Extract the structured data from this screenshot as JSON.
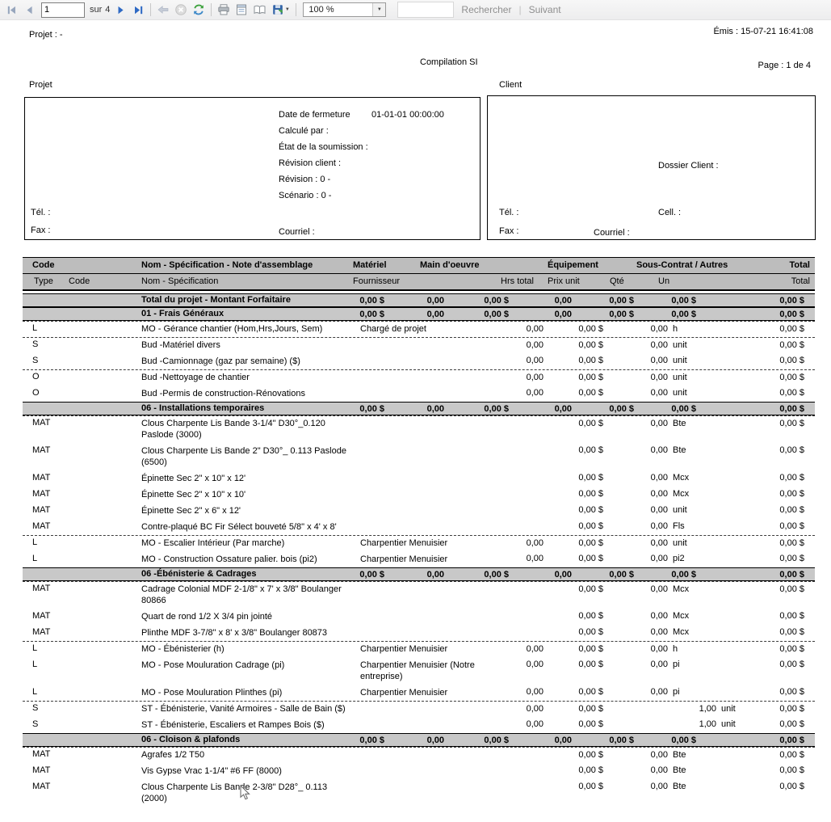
{
  "colors": {
    "nav_enabled_blue": "#2e69c4",
    "nav_disabled_gray": "#97a6bd",
    "refresh_green": "#3ba13b",
    "header_gray": "#bdbdbd",
    "section_gray": "#c8c8c8",
    "toolbar_bg": "#f1f1f2",
    "link_gray": "#8f8f8f"
  },
  "toolbar": {
    "page_value": "1",
    "pages_label": "sur",
    "pages_total": "4",
    "zoom_value": "100 %",
    "caret_glyph": "▼",
    "search_value": "",
    "find_label": "Rechercher",
    "links_separator": "|",
    "next_label": "Suivant"
  },
  "report": {
    "project_label": "Projet :  -",
    "emitted": "Émis : 15-07-21 16:41:08",
    "title": "Compilation SI",
    "page_info": "Page : 1 de 4",
    "projet_box": {
      "label": "Projet",
      "date_fermeture_label": "Date de fermeture",
      "date_fermeture_value": "01-01-01 00:00:00",
      "calcule_par": "Calculé par :",
      "etat_soumission": "État de la soumission :",
      "revision_client": "Révision client :",
      "revision": "Révision : 0 -",
      "scenario": "Scénario : 0 -",
      "tel": "Tél. :",
      "fax": "Fax :",
      "courriel": "Courriel :"
    },
    "client_box": {
      "label": "Client",
      "dossier_client": "Dossier Client :",
      "tel": "Tél. :",
      "cell": "Cell. :",
      "fax": "Fax :",
      "courriel": "Courriel :"
    }
  },
  "table": {
    "header1": {
      "code": "Code",
      "nom": "Nom - Spécification - Note d'assemblage",
      "materiel": "Matériel",
      "main_oeuvre": "Main d'oeuvre",
      "equipement": "Équipement",
      "sous_contrat": "Sous-Contrat / Autres",
      "total": "Total"
    },
    "header2": {
      "type": "Type",
      "code": "Code",
      "nom": "Nom - Spécification",
      "fournisseur": "Fournisseur",
      "hrs_total": "Hrs total",
      "prix_unit": "Prix unit",
      "qte": "Qté",
      "un": "Un",
      "total": "Total"
    },
    "rows": [
      {
        "kind": "total",
        "label": "Total du projet - Montant Forfaitaire",
        "values": [
          "0,00 $",
          "0,00",
          "0,00 $",
          "0,00",
          "0,00 $",
          "0,00 $",
          "0,00 $"
        ]
      },
      {
        "kind": "section",
        "label": "01 - Frais Généraux",
        "values": [
          "0,00 $",
          "0,00",
          "0,00 $",
          "0,00",
          "0,00 $",
          "0,00 $",
          "0,00 $"
        ]
      },
      {
        "kind": "detail",
        "dash": true,
        "type": "L",
        "name": "MO - Gérance chantier (Hom,Hrs,Jours, Sem)",
        "fournisseur": "Chargé de projet",
        "hrs": "0,00",
        "prix": "0,00 $",
        "qte": "0,00",
        "un": "h",
        "total": "0,00 $"
      },
      {
        "kind": "detail",
        "dash": true,
        "type": "S",
        "name": "Bud -Matériel divers",
        "fournisseur": "",
        "hrs": "0,00",
        "prix": "0,00 $",
        "qte": "0,00",
        "un": "unit",
        "total": "0,00 $"
      },
      {
        "kind": "detail",
        "type": "S",
        "name": "Bud -Camionnage (gaz par semaine) ($)",
        "fournisseur": "",
        "hrs": "0,00",
        "prix": "0,00 $",
        "qte": "0,00",
        "un": "unit",
        "total": "0,00 $"
      },
      {
        "kind": "detail",
        "dash": true,
        "type": "O",
        "name": "Bud -Nettoyage de chantier",
        "fournisseur": "",
        "hrs": "0,00",
        "prix": "0,00 $",
        "qte": "0,00",
        "un": "unit",
        "total": "0,00 $"
      },
      {
        "kind": "detail",
        "type": "O",
        "name": "Bud -Permis de construction-Rénovations",
        "fournisseur": "",
        "hrs": "0,00",
        "prix": "0,00 $",
        "qte": "0,00",
        "un": "unit",
        "total": "0,00 $"
      },
      {
        "kind": "section",
        "label": "06 - Installations temporaires",
        "values": [
          "0,00 $",
          "0,00",
          "0,00 $",
          "0,00",
          "0,00 $",
          "0,00 $",
          "0,00 $"
        ]
      },
      {
        "kind": "detail",
        "dash": true,
        "type": "MAT",
        "name": "Clous Charpente Lis Bande 3-1/4\" D30°_0.120 Paslode (3000)",
        "fournisseur": "",
        "prix": "0,00 $",
        "qte": "0,00",
        "un": "Bte",
        "total": "0,00 $"
      },
      {
        "kind": "detail",
        "type": "MAT",
        "name": "Clous Charpente Lis Bande 2\" D30°_ 0.113 Paslode (6500)",
        "fournisseur": "",
        "prix": "0,00 $",
        "qte": "0,00",
        "un": "Bte",
        "total": "0,00 $"
      },
      {
        "kind": "detail",
        "type": "MAT",
        "name": "Épinette Sec 2\" x 10\" x 12'",
        "fournisseur": "",
        "prix": "0,00 $",
        "qte": "0,00",
        "un": "Mcx",
        "total": "0,00 $"
      },
      {
        "kind": "detail",
        "type": "MAT",
        "name": "Épinette Sec 2\" x 10\" x 10'",
        "fournisseur": "",
        "prix": "0,00 $",
        "qte": "0,00",
        "un": "Mcx",
        "total": "0,00 $"
      },
      {
        "kind": "detail",
        "type": "MAT",
        "name": "Épinette Sec 2\" x  6\" x 12'",
        "fournisseur": "",
        "prix": "0,00 $",
        "qte": "0,00",
        "un": "unit",
        "total": "0,00 $"
      },
      {
        "kind": "detail",
        "type": "MAT",
        "name": "Contre-plaqué BC Fir Sélect bouveté 5/8\" x 4' x 8'",
        "fournisseur": "",
        "prix": "0,00 $",
        "qte": "0,00",
        "un": "Fls",
        "total": "0,00 $"
      },
      {
        "kind": "detail",
        "dash": true,
        "type": "L",
        "name": "MO - Escalier Intérieur (Par marche)",
        "fournisseur": "Charpentier Menuisier",
        "hrs": "0,00",
        "prix": "0,00 $",
        "qte": "0,00",
        "un": "unit",
        "total": "0,00 $"
      },
      {
        "kind": "detail",
        "type": "L",
        "name": "MO - Construction Ossature palier. bois  (pi2)",
        "fournisseur": "Charpentier Menuisier",
        "hrs": "0,00",
        "prix": "0,00 $",
        "qte": "0,00",
        "un": "pi2",
        "total": "0,00 $"
      },
      {
        "kind": "section",
        "label": "06  -Ébénisterie & Cadrages",
        "values": [
          "0,00 $",
          "0,00",
          "0,00 $",
          "0,00",
          "0,00 $",
          "0,00 $",
          "0,00 $"
        ]
      },
      {
        "kind": "detail",
        "dash": true,
        "type": "MAT",
        "name": "Cadrage Colonial MDF 2-1/8\"  x  7' x  3/8\" Boulanger 80866",
        "fournisseur": "",
        "prix": "0,00 $",
        "qte": "0,00",
        "un": "Mcx",
        "total": "0,00 $"
      },
      {
        "kind": "detail",
        "type": "MAT",
        "name": "Quart de rond 1/2 X 3/4 pin jointé",
        "fournisseur": "",
        "prix": "0,00 $",
        "qte": "0,00",
        "un": "Mcx",
        "total": "0,00 $"
      },
      {
        "kind": "detail",
        "type": "MAT",
        "name": "Plinthe MDF  3-7/8\" x  8' x 3/8\" Boulanger 80873",
        "fournisseur": "",
        "prix": "0,00 $",
        "qte": "0,00",
        "un": "Mcx",
        "total": "0,00 $"
      },
      {
        "kind": "detail",
        "dash": true,
        "type": "L",
        "name": "MO - Ébénisterier (h)",
        "fournisseur": "Charpentier Menuisier",
        "hrs": "0,00",
        "prix": "0,00 $",
        "qte": "0,00",
        "un": "h",
        "total": "0,00 $"
      },
      {
        "kind": "detail",
        "type": "L",
        "name": "MO - Pose Mouluration Cadrage (pi)",
        "fournisseur": "Charpentier Menuisier  (Notre entreprise)",
        "hrs": "0,00",
        "prix": "0,00 $",
        "qte": "0,00",
        "un": "pi",
        "total": "0,00 $"
      },
      {
        "kind": "detail",
        "type": "L",
        "name": "MO - Pose Mouluration Plinthes (pi)",
        "fournisseur": "Charpentier Menuisier",
        "hrs": "0,00",
        "prix": "0,00 $",
        "qte": "0,00",
        "un": "pi",
        "total": "0,00 $"
      },
      {
        "kind": "detail",
        "dash": true,
        "shift": true,
        "type": "S",
        "name": "ST - Ébénisterie, Vanité Armoires - Salle de Bain ($)",
        "fournisseur": "",
        "hrs": "0,00",
        "prix": "0,00 $",
        "qte": "1,00",
        "un": "unit",
        "total": "0,00 $"
      },
      {
        "kind": "detail",
        "shift": true,
        "type": "S",
        "name": "ST - Ébénisterie, Escaliers et Rampes Bois ($)",
        "fournisseur": "",
        "hrs": "0,00",
        "prix": "0,00 $",
        "qte": "1,00",
        "un": "unit",
        "total": "0,00 $"
      },
      {
        "kind": "section",
        "label": "06 - Cloison & plafonds",
        "values": [
          "0,00 $",
          "0,00",
          "0,00 $",
          "0,00",
          "0,00 $",
          "0,00 $",
          "0,00 $"
        ]
      },
      {
        "kind": "detail",
        "dash": true,
        "type": "MAT",
        "name": "Agrafes 1/2 T50",
        "fournisseur": "",
        "prix": "0,00 $",
        "qte": "0,00",
        "un": "Bte",
        "total": "0,00 $"
      },
      {
        "kind": "detail",
        "type": "MAT",
        "name": "Vis Gypse Vrac 1-1/4\" #6 FF (8000)",
        "fournisseur": "",
        "prix": "0,00 $",
        "qte": "0,00",
        "un": "Bte",
        "total": "0,00 $"
      },
      {
        "kind": "detail",
        "type": "MAT",
        "name": "Clous Charpente Lis Bande 2-3/8\" D28°_ 0.113 (2000)",
        "fournisseur": "",
        "prix": "0,00 $",
        "qte": "0,00",
        "un": "Bte",
        "total": "0,00 $"
      }
    ]
  }
}
